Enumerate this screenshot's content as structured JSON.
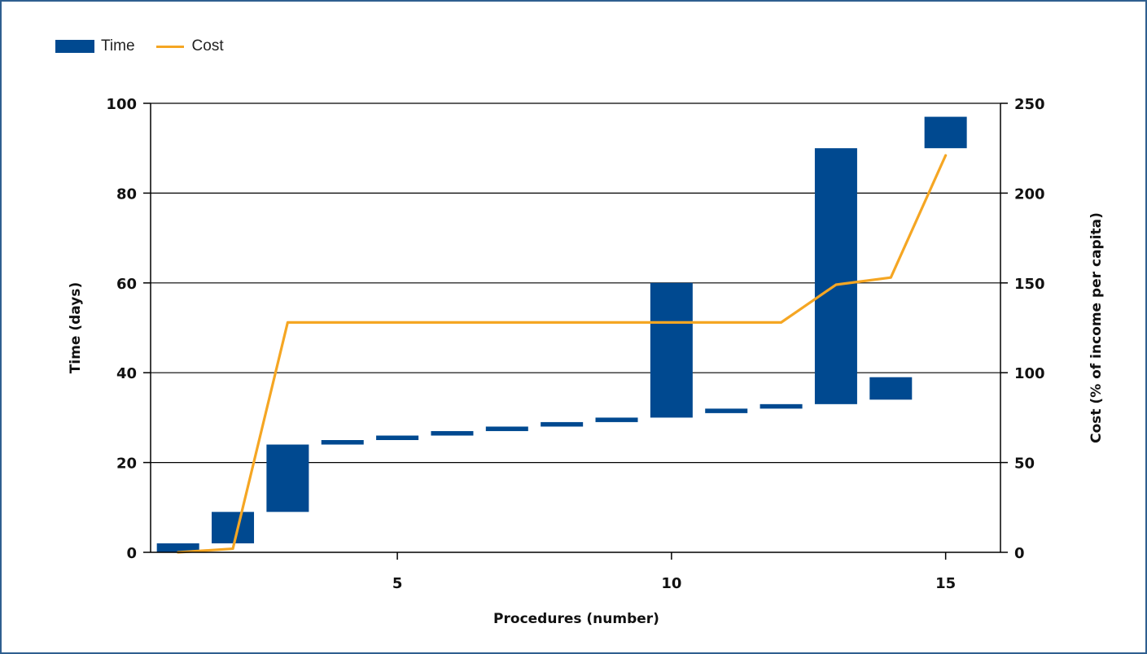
{
  "colors": {
    "time": "#004990",
    "cost": "#f5a623",
    "grid": "#000000"
  },
  "legend": {
    "time_label": "Time",
    "cost_label": "Cost"
  },
  "chart_data": {
    "type": "bar",
    "legend_placement": "top-left",
    "grid": true,
    "xlabel": "Procedures (number)",
    "ylabel": "Time (days)",
    "y2label": "Cost (% of income per capita)",
    "xlim": [
      0.5,
      16
    ],
    "ylim": [
      0,
      100
    ],
    "y2lim": [
      0,
      250
    ],
    "x_ticks": [
      5,
      10,
      15
    ],
    "y_ticks": [
      0,
      20,
      40,
      60,
      80,
      100
    ],
    "y2_ticks": [
      0,
      50,
      100,
      150,
      200,
      250
    ],
    "series": [
      {
        "name": "Time",
        "kind": "floating-bar",
        "axis": "left",
        "points": [
          {
            "x": 1,
            "start": 0,
            "end": 2
          },
          {
            "x": 2,
            "start": 2,
            "end": 9
          },
          {
            "x": 3,
            "start": 9,
            "end": 24
          },
          {
            "x": 4,
            "start": 24,
            "end": 25
          },
          {
            "x": 5,
            "start": 25,
            "end": 26
          },
          {
            "x": 6,
            "start": 26,
            "end": 27
          },
          {
            "x": 7,
            "start": 27,
            "end": 28
          },
          {
            "x": 8,
            "start": 28,
            "end": 29
          },
          {
            "x": 9,
            "start": 29,
            "end": 30
          },
          {
            "x": 10,
            "start": 30,
            "end": 60
          },
          {
            "x": 11,
            "start": 31,
            "end": 32
          },
          {
            "x": 12,
            "start": 32,
            "end": 33
          },
          {
            "x": 13,
            "start": 33,
            "end": 90
          },
          {
            "x": 14,
            "start": 34,
            "end": 39
          },
          {
            "x": 15,
            "start": 90,
            "end": 97
          }
        ]
      },
      {
        "name": "Cost",
        "kind": "line",
        "axis": "right",
        "x": [
          1,
          2,
          3,
          4,
          5,
          6,
          7,
          8,
          9,
          10,
          11,
          12,
          13,
          14,
          15
        ],
        "values": [
          0,
          2,
          128,
          128,
          128,
          128,
          128,
          128,
          128,
          128,
          128,
          128,
          149,
          153,
          221
        ]
      }
    ]
  }
}
